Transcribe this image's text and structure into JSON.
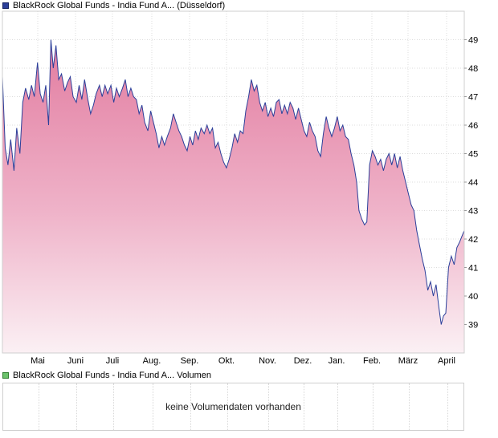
{
  "price_legend": {
    "label": "BlackRock Global Funds - India Fund A... (Düsseldorf)",
    "color": "#2b3f9a"
  },
  "volume_legend": {
    "label": "BlackRock Global Funds - India Fund A... Volumen",
    "color": "#6cc36c"
  },
  "volume_message": "keine Volumendaten vorhanden",
  "chart_data": {
    "type": "area",
    "ylim": [
      38,
      50
    ],
    "y_ticks": [
      39,
      40,
      41,
      42,
      43,
      44,
      45,
      46,
      47,
      48,
      49
    ],
    "x_labels": [
      "Mai",
      "Juni",
      "Juli",
      "Aug.",
      "Sep.",
      "Okt.",
      "Nov.",
      "Dez.",
      "Jan.",
      "Feb.",
      "März",
      "April"
    ],
    "x_range": [
      0,
      1
    ],
    "line_color": "#2b3f9a",
    "fill_top_color": "#e27ca0",
    "fill_bottom_color": "#fbf0f4",
    "grid": true,
    "series": [
      {
        "points": [
          [
            0.0,
            47.7
          ],
          [
            0.006,
            45.2
          ],
          [
            0.012,
            44.6
          ],
          [
            0.018,
            45.5
          ],
          [
            0.025,
            44.4
          ],
          [
            0.031,
            45.9
          ],
          [
            0.038,
            45.0
          ],
          [
            0.044,
            46.8
          ],
          [
            0.05,
            47.3
          ],
          [
            0.057,
            46.9
          ],
          [
            0.063,
            47.4
          ],
          [
            0.069,
            47.0
          ],
          [
            0.076,
            48.2
          ],
          [
            0.082,
            47.1
          ],
          [
            0.088,
            46.8
          ],
          [
            0.094,
            47.4
          ],
          [
            0.1,
            46.0
          ],
          [
            0.105,
            49.0
          ],
          [
            0.11,
            48.0
          ],
          [
            0.116,
            48.8
          ],
          [
            0.122,
            47.6
          ],
          [
            0.128,
            47.8
          ],
          [
            0.135,
            47.2
          ],
          [
            0.141,
            47.5
          ],
          [
            0.147,
            47.7
          ],
          [
            0.153,
            47.0
          ],
          [
            0.16,
            46.8
          ],
          [
            0.166,
            47.4
          ],
          [
            0.172,
            46.9
          ],
          [
            0.178,
            47.6
          ],
          [
            0.185,
            46.9
          ],
          [
            0.191,
            46.4
          ],
          [
            0.197,
            46.7
          ],
          [
            0.203,
            47.1
          ],
          [
            0.21,
            47.4
          ],
          [
            0.216,
            47.0
          ],
          [
            0.222,
            47.4
          ],
          [
            0.228,
            47.1
          ],
          [
            0.235,
            47.4
          ],
          [
            0.241,
            46.8
          ],
          [
            0.247,
            47.3
          ],
          [
            0.253,
            47.0
          ],
          [
            0.26,
            47.3
          ],
          [
            0.266,
            47.6
          ],
          [
            0.272,
            47.0
          ],
          [
            0.278,
            47.3
          ],
          [
            0.284,
            47.0
          ],
          [
            0.29,
            46.9
          ],
          [
            0.296,
            46.4
          ],
          [
            0.302,
            46.7
          ],
          [
            0.308,
            46.1
          ],
          [
            0.315,
            45.8
          ],
          [
            0.321,
            46.5
          ],
          [
            0.327,
            46.1
          ],
          [
            0.333,
            45.7
          ],
          [
            0.339,
            45.2
          ],
          [
            0.345,
            45.6
          ],
          [
            0.351,
            45.3
          ],
          [
            0.357,
            45.6
          ],
          [
            0.364,
            45.9
          ],
          [
            0.37,
            46.4
          ],
          [
            0.376,
            46.1
          ],
          [
            0.382,
            45.8
          ],
          [
            0.388,
            45.6
          ],
          [
            0.394,
            45.3
          ],
          [
            0.4,
            45.1
          ],
          [
            0.406,
            45.6
          ],
          [
            0.412,
            45.3
          ],
          [
            0.418,
            45.8
          ],
          [
            0.424,
            45.5
          ],
          [
            0.43,
            45.9
          ],
          [
            0.437,
            45.7
          ],
          [
            0.443,
            46.0
          ],
          [
            0.449,
            45.7
          ],
          [
            0.455,
            45.9
          ],
          [
            0.461,
            45.2
          ],
          [
            0.467,
            45.4
          ],
          [
            0.473,
            45.0
          ],
          [
            0.479,
            44.7
          ],
          [
            0.485,
            44.5
          ],
          [
            0.491,
            44.8
          ],
          [
            0.497,
            45.2
          ],
          [
            0.503,
            45.7
          ],
          [
            0.509,
            45.4
          ],
          [
            0.515,
            45.8
          ],
          [
            0.521,
            45.7
          ],
          [
            0.527,
            46.5
          ],
          [
            0.533,
            47.0
          ],
          [
            0.539,
            47.6
          ],
          [
            0.545,
            47.2
          ],
          [
            0.551,
            47.4
          ],
          [
            0.557,
            46.8
          ],
          [
            0.563,
            46.5
          ],
          [
            0.569,
            46.8
          ],
          [
            0.575,
            46.3
          ],
          [
            0.581,
            46.6
          ],
          [
            0.587,
            46.3
          ],
          [
            0.593,
            46.8
          ],
          [
            0.599,
            46.9
          ],
          [
            0.605,
            46.4
          ],
          [
            0.611,
            46.7
          ],
          [
            0.617,
            46.4
          ],
          [
            0.623,
            46.8
          ],
          [
            0.629,
            46.6
          ],
          [
            0.635,
            46.2
          ],
          [
            0.641,
            46.6
          ],
          [
            0.647,
            46.2
          ],
          [
            0.653,
            45.8
          ],
          [
            0.659,
            45.6
          ],
          [
            0.665,
            46.1
          ],
          [
            0.671,
            45.8
          ],
          [
            0.677,
            45.6
          ],
          [
            0.683,
            45.1
          ],
          [
            0.689,
            44.9
          ],
          [
            0.695,
            45.7
          ],
          [
            0.701,
            46.3
          ],
          [
            0.707,
            45.9
          ],
          [
            0.713,
            45.6
          ],
          [
            0.719,
            45.9
          ],
          [
            0.725,
            46.3
          ],
          [
            0.731,
            45.8
          ],
          [
            0.737,
            46.0
          ],
          [
            0.743,
            45.6
          ],
          [
            0.749,
            45.5
          ],
          [
            0.755,
            45.0
          ],
          [
            0.761,
            44.6
          ],
          [
            0.767,
            44.0
          ],
          [
            0.772,
            43.0
          ],
          [
            0.778,
            42.7
          ],
          [
            0.784,
            42.5
          ],
          [
            0.789,
            42.6
          ],
          [
            0.795,
            44.6
          ],
          [
            0.801,
            45.1
          ],
          [
            0.807,
            44.9
          ],
          [
            0.813,
            44.6
          ],
          [
            0.819,
            44.8
          ],
          [
            0.825,
            44.4
          ],
          [
            0.831,
            44.8
          ],
          [
            0.837,
            45.0
          ],
          [
            0.843,
            44.6
          ],
          [
            0.849,
            45.0
          ],
          [
            0.855,
            44.5
          ],
          [
            0.861,
            44.9
          ],
          [
            0.867,
            44.4
          ],
          [
            0.873,
            44.0
          ],
          [
            0.879,
            43.6
          ],
          [
            0.885,
            43.2
          ],
          [
            0.891,
            43.0
          ],
          [
            0.897,
            42.3
          ],
          [
            0.903,
            41.8
          ],
          [
            0.909,
            41.3
          ],
          [
            0.915,
            40.9
          ],
          [
            0.921,
            40.2
          ],
          [
            0.927,
            40.5
          ],
          [
            0.933,
            40.0
          ],
          [
            0.939,
            40.4
          ],
          [
            0.945,
            39.6
          ],
          [
            0.95,
            39.0
          ],
          [
            0.955,
            39.3
          ],
          [
            0.96,
            39.4
          ],
          [
            0.966,
            41.0
          ],
          [
            0.972,
            41.4
          ],
          [
            0.978,
            41.1
          ],
          [
            0.984,
            41.7
          ],
          [
            0.99,
            41.9
          ],
          [
            0.995,
            42.1
          ],
          [
            1.0,
            42.3
          ]
        ]
      }
    ]
  }
}
